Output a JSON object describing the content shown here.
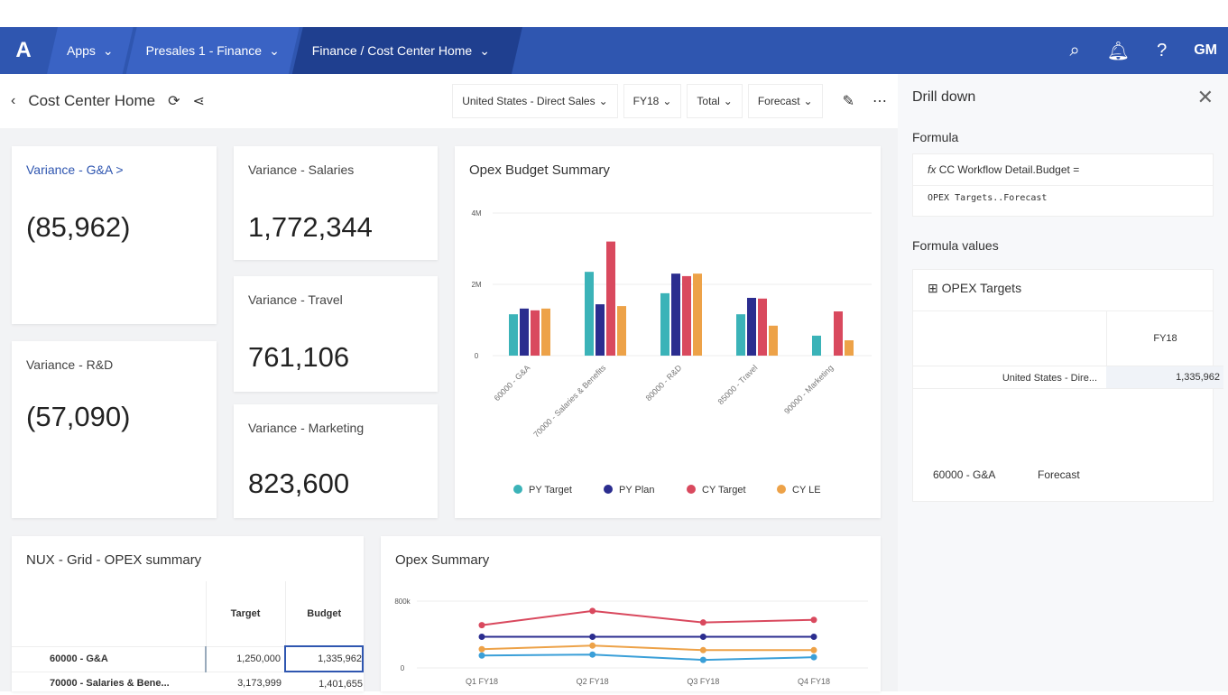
{
  "nav": {
    "apps": "Apps",
    "workspace": "Presales 1 - Finance",
    "page": "Finance / Cost Center Home",
    "user": "GM"
  },
  "header": {
    "title": "Cost Center Home",
    "filters": [
      "United States - Direct Sales",
      "FY18",
      "Total",
      "Forecast"
    ]
  },
  "kpis": [
    {
      "label": "Variance - G&A >",
      "value": "(85,962)"
    },
    {
      "label": "Variance - Salaries",
      "value": "1,772,344"
    },
    {
      "label": "Variance - Travel",
      "value": "761,106"
    },
    {
      "label": "Variance - R&D",
      "value": "(57,090)"
    },
    {
      "label": "Variance - Marketing",
      "value": "823,600"
    }
  ],
  "grid": {
    "title": "NUX - Grid - OPEX summary",
    "columns": [
      "Target",
      "Budget"
    ],
    "rows": [
      {
        "label": "60000 - G&A",
        "target": "1,250,000",
        "budget": "1,335,962"
      },
      {
        "label": "70000 - Salaries & Bene...",
        "target": "3,173,999",
        "budget": "1,401,655"
      }
    ]
  },
  "drill": {
    "title": "Drill down",
    "formula_label": "Formula",
    "formula_line1": "CC Workflow Detail.Budget =",
    "formula_line2": "OPEX Targets..Forecast",
    "values_label": "Formula values",
    "table_title": "OPEX Targets",
    "col": "FY18",
    "row_label": "United States - Dire...",
    "row_value": "1,335,962",
    "foot1": "60000 - G&A",
    "foot2": "Forecast"
  },
  "colors": {
    "teal": "#3bb3b8",
    "navy": "#2b2d8f",
    "red": "#d9495e",
    "orange": "#eda248",
    "blue": "#3a9fd8"
  },
  "chart_data": [
    {
      "type": "bar",
      "title": "Opex Budget Summary",
      "categories": [
        "60000 - G&A",
        "70000 - Salaries & Benefits",
        "80000 - R&D",
        "85000 - Travel",
        "90000 - Marketing"
      ],
      "yticks": [
        "0",
        "2M",
        "4M"
      ],
      "ylim": [
        0,
        4000000
      ],
      "series": [
        {
          "name": "PY Target",
          "values": [
            1160000,
            2350000,
            1750000,
            1160000,
            560000
          ]
        },
        {
          "name": "PY Plan",
          "values": [
            1320000,
            1440000,
            2300000,
            1620000,
            0
          ]
        },
        {
          "name": "CY Target",
          "values": [
            1270000,
            3200000,
            2230000,
            1600000,
            1240000
          ]
        },
        {
          "name": "CY LE",
          "values": [
            1320000,
            1390000,
            2300000,
            840000,
            430000
          ]
        }
      ],
      "legend": "bottom"
    },
    {
      "type": "line",
      "title": "Opex Summary",
      "categories": [
        "Q1 FY18",
        "Q2 FY18",
        "Q3 FY18",
        "Q4 FY18"
      ],
      "yticks": [
        "0",
        "800k"
      ],
      "ylim": [
        0,
        800000
      ],
      "series": [
        {
          "name": "CY Target",
          "values": [
            512000,
            683000,
            544000,
            576000
          ]
        },
        {
          "name": "PY Plan",
          "values": [
            373000,
            373000,
            373000,
            373000
          ]
        },
        {
          "name": "CY LE",
          "values": [
            224000,
            267000,
            213000,
            213000
          ]
        },
        {
          "name": "PY Target",
          "values": [
            149000,
            160000,
            96000,
            128000
          ]
        }
      ]
    }
  ]
}
